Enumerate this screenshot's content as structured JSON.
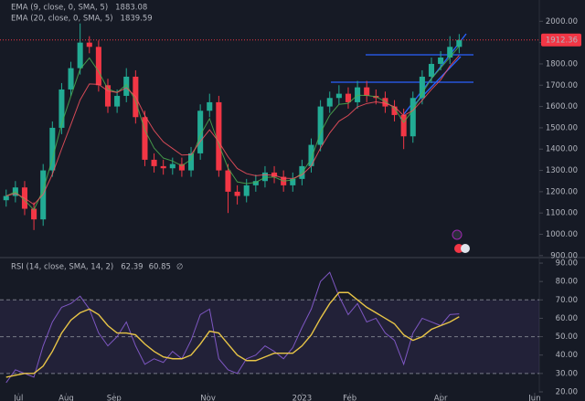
{
  "chart_data": [
    {
      "type": "candlestick",
      "x": [
        -8,
        -2,
        4,
        10,
        16,
        22,
        28,
        34,
        40,
        46,
        52,
        58,
        64,
        70,
        76,
        82,
        88,
        94,
        100,
        106,
        112,
        118,
        124,
        130,
        136,
        142,
        148,
        154,
        160,
        166,
        172,
        178,
        184,
        190,
        196,
        202,
        208,
        214,
        220,
        226,
        232,
        238,
        244,
        250,
        256,
        262,
        268,
        274,
        280,
        286
      ],
      "open": [
        1160,
        1180,
        1220,
        1120,
        1070,
        1300,
        1500,
        1680,
        1780,
        1900,
        1880,
        1700,
        1600,
        1650,
        1740,
        1550,
        1350,
        1320,
        1310,
        1330,
        1300,
        1380,
        1580,
        1620,
        1300,
        1200,
        1180,
        1230,
        1250,
        1290,
        1270,
        1230,
        1260,
        1320,
        1420,
        1600,
        1640,
        1660,
        1620,
        1690,
        1650,
        1640,
        1600,
        1560,
        1460,
        1640,
        1740,
        1800,
        1830,
        1880
      ],
      "high": [
        1210,
        1250,
        1250,
        1150,
        1330,
        1530,
        1710,
        1810,
        1990,
        1930,
        1910,
        1730,
        1680,
        1780,
        1770,
        1580,
        1380,
        1350,
        1360,
        1360,
        1410,
        1610,
        1660,
        1650,
        1330,
        1230,
        1260,
        1280,
        1320,
        1320,
        1300,
        1290,
        1350,
        1450,
        1630,
        1670,
        1700,
        1690,
        1720,
        1720,
        1680,
        1670,
        1630,
        1590,
        1670,
        1770,
        1830,
        1860,
        1930,
        1940
      ],
      "low": [
        1130,
        1150,
        1090,
        1020,
        1040,
        1270,
        1470,
        1650,
        1750,
        1850,
        1670,
        1570,
        1570,
        1620,
        1520,
        1320,
        1290,
        1280,
        1280,
        1270,
        1270,
        1350,
        1550,
        1270,
        1100,
        1140,
        1150,
        1200,
        1220,
        1240,
        1200,
        1200,
        1230,
        1290,
        1390,
        1570,
        1610,
        1590,
        1590,
        1620,
        1610,
        1570,
        1530,
        1400,
        1430,
        1610,
        1710,
        1770,
        1800,
        1850
      ],
      "close": [
        1180,
        1220,
        1120,
        1070,
        1300,
        1500,
        1680,
        1780,
        1900,
        1880,
        1700,
        1600,
        1650,
        1740,
        1550,
        1350,
        1320,
        1310,
        1330,
        1300,
        1380,
        1580,
        1620,
        1300,
        1200,
        1180,
        1230,
        1250,
        1290,
        1270,
        1230,
        1260,
        1320,
        1420,
        1600,
        1640,
        1660,
        1620,
        1690,
        1650,
        1640,
        1600,
        1560,
        1460,
        1640,
        1740,
        1800,
        1830,
        1880,
        1912.36
      ],
      "up_color": "#22ab94",
      "down_color": "#f23645",
      "series": [
        {
          "name": "EMA (9, close, 0, SMA, 5)",
          "color": "#4caf50",
          "values": [
            1180,
            1200,
            1160,
            1115,
            1208,
            1354,
            1517,
            1649,
            1775,
            1828,
            1764,
            1682,
            1666,
            1703,
            1627,
            1489,
            1405,
            1358,
            1344,
            1322,
            1351,
            1466,
            1543,
            1422,
            1311,
            1246,
            1238,
            1244,
            1267,
            1269,
            1250,
            1255,
            1288,
            1354,
            1477,
            1559,
            1610,
            1615,
            1653,
            1652,
            1646,
            1623,
            1592,
            1526,
            1583,
            1662,
            1731,
            1781,
            1831,
            1883.08
          ]
        },
        {
          "name": "EMA (20, close, 0, SMA, 5)",
          "color": "#f7525f",
          "values": [
            1180,
            1192,
            1170,
            1140,
            1188,
            1282,
            1401,
            1515,
            1631,
            1706,
            1704,
            1673,
            1666,
            1688,
            1647,
            1558,
            1487,
            1434,
            1403,
            1372,
            1374,
            1436,
            1491,
            1434,
            1364,
            1309,
            1285,
            1275,
            1280,
            1277,
            1263,
            1262,
            1279,
            1321,
            1405,
            1476,
            1531,
            1558,
            1598,
            1614,
            1622,
            1615,
            1599,
            1557,
            1582,
            1629,
            1680,
            1725,
            1790,
            1839.59
          ]
        }
      ],
      "xlim": [
        -12,
        338
      ],
      "ylim": [
        895,
        2100
      ],
      "yticks": [
        {
          "value": 900,
          "label": "900.00"
        },
        {
          "value": 1000,
          "label": "1000.00"
        },
        {
          "value": 1100,
          "label": "1100.00"
        },
        {
          "value": 1200,
          "label": "1200.00"
        },
        {
          "value": 1300,
          "label": "1300.00"
        },
        {
          "value": 1400,
          "label": "1400.00"
        },
        {
          "value": 1500,
          "label": "1500.00"
        },
        {
          "value": 1600,
          "label": "1600.00"
        },
        {
          "value": 1700,
          "label": "1700.00"
        },
        {
          "value": 1800,
          "label": "1800.00"
        },
        {
          "value": 1900,
          "label": "1900.00"
        },
        {
          "value": 2000,
          "label": "2000.00"
        }
      ],
      "grid": false
    },
    {
      "type": "line",
      "title": "RSI (14, close, SMA, 14, 2)",
      "legend_symbol": "∅",
      "x": [
        -8,
        -2,
        4,
        10,
        16,
        22,
        28,
        34,
        40,
        46,
        52,
        58,
        64,
        70,
        76,
        82,
        88,
        94,
        100,
        106,
        112,
        118,
        124,
        130,
        136,
        142,
        148,
        154,
        160,
        166,
        172,
        178,
        184,
        190,
        196,
        202,
        208,
        214,
        220,
        226,
        232,
        238,
        244,
        250,
        256,
        262,
        268,
        274,
        280,
        286
      ],
      "series": [
        {
          "name": "RSI",
          "color": "#7e57c2",
          "values": [
            25,
            32,
            30,
            28,
            45,
            58,
            66,
            68,
            72,
            65,
            52,
            45,
            50,
            58,
            45,
            35,
            38,
            36,
            42,
            38,
            48,
            62,
            65,
            38,
            32,
            30,
            38,
            40,
            45,
            42,
            38,
            44,
            55,
            65,
            80,
            85,
            72,
            62,
            68,
            58,
            60,
            52,
            48,
            35,
            52,
            60,
            58,
            56,
            62,
            62.39
          ]
        },
        {
          "name": "RSI MA",
          "color": "#e8c547",
          "values": [
            28,
            29,
            30,
            30,
            34,
            42,
            52,
            59,
            63,
            65,
            62,
            56,
            52,
            52,
            51,
            46,
            42,
            39,
            38,
            38,
            40,
            46,
            53,
            52,
            46,
            40,
            37,
            37,
            39,
            41,
            41,
            41,
            45,
            51,
            60,
            68,
            74,
            74,
            70,
            66,
            63,
            60,
            57,
            51,
            48,
            50,
            54,
            56,
            58,
            60.85
          ]
        }
      ],
      "levels": [
        30,
        50,
        70
      ],
      "band_color": "#7e57c2",
      "xlim": [
        -12,
        338
      ],
      "xticks": [
        {
          "value": 0,
          "label": "Jul"
        },
        {
          "value": 31,
          "label": "Aug"
        },
        {
          "value": 62,
          "label": "Sep"
        },
        {
          "value": 123,
          "label": "Nov"
        },
        {
          "value": 184,
          "label": "2023"
        },
        {
          "value": 215,
          "label": "Feb"
        },
        {
          "value": 274,
          "label": "Apr"
        },
        {
          "value": 335,
          "label": "Jun"
        }
      ],
      "ylim": [
        19.5,
        92.5
      ],
      "yticks": [
        {
          "value": 20,
          "label": "20.00"
        },
        {
          "value": 30,
          "label": "30.00"
        },
        {
          "value": 40,
          "label": "40.00"
        },
        {
          "value": 50,
          "label": "50.00"
        },
        {
          "value": 60,
          "label": "60.00"
        },
        {
          "value": 70,
          "label": "70.00"
        },
        {
          "value": 80,
          "label": "80.00"
        },
        {
          "value": 90,
          "label": "90.00"
        }
      ],
      "grid": false
    }
  ]
}
